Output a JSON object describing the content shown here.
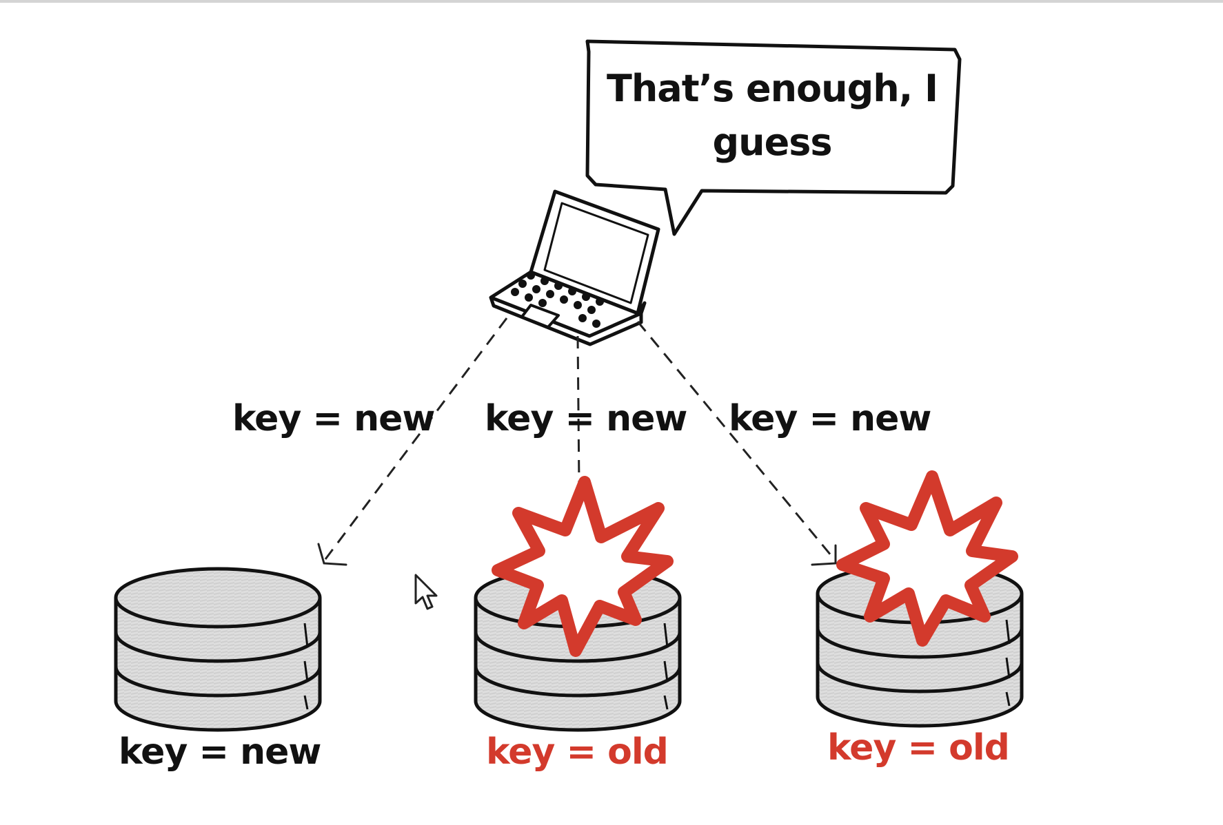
{
  "speech_bubble": {
    "line1": "That’s enough, I",
    "line2": "guess"
  },
  "write_labels": [
    {
      "text": "key = new"
    },
    {
      "text": "key = new"
    },
    {
      "text": "key = new"
    }
  ],
  "databases": [
    {
      "value_label": "key = new",
      "failed": false
    },
    {
      "value_label": "key = old",
      "failed": true
    },
    {
      "value_label": "key = old",
      "failed": true
    }
  ],
  "icons": {
    "client": "laptop-icon",
    "store": "database-icon",
    "failure": "explosion-icon",
    "pointer": "mouse-cursor-icon"
  },
  "colors": {
    "ink": "#111111",
    "failure_red": "#d33a2c",
    "disk_gray": "#d9d9d9",
    "background": "#ffffff"
  }
}
